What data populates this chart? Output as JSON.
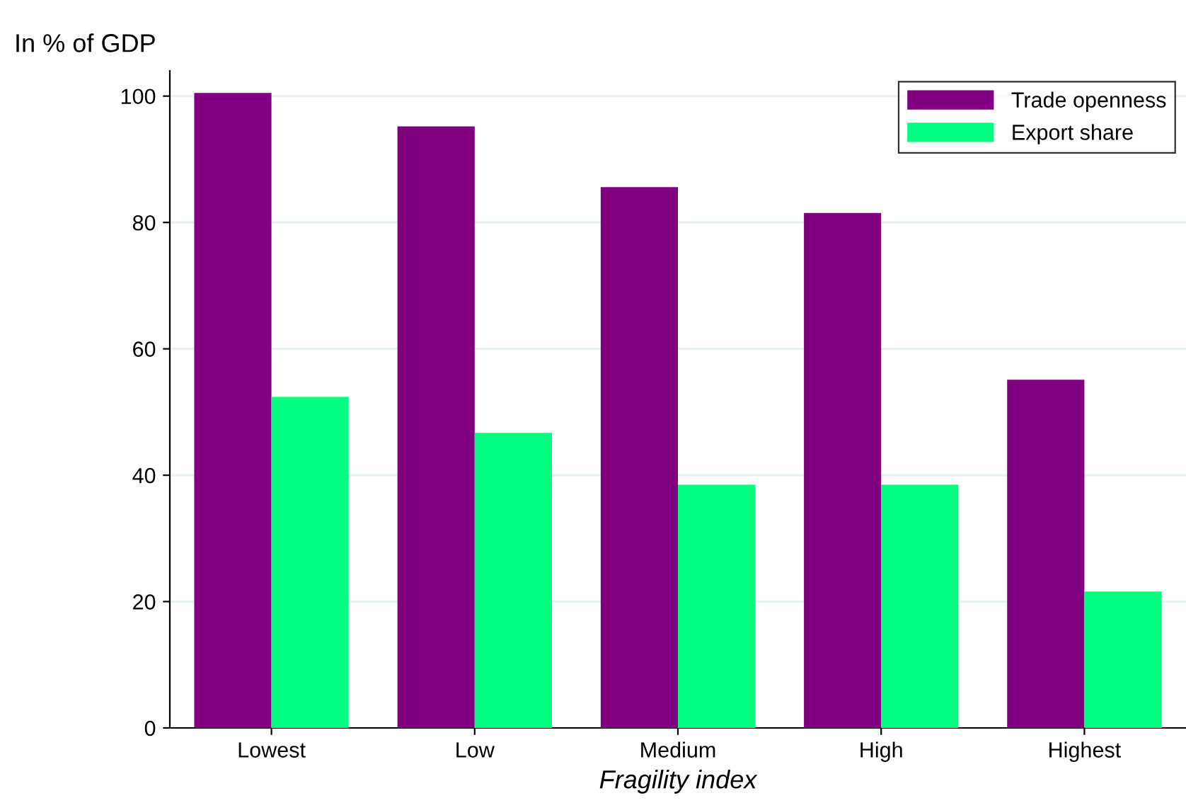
{
  "chart_data": {
    "type": "bar",
    "ylabel": "In % of GDP",
    "xlabel": "Fragility index",
    "categories": [
      "Lowest",
      "Low",
      "Medium",
      "High",
      "Highest"
    ],
    "series": [
      {
        "name": "Trade openness",
        "color": "#800080",
        "values": [
          100.5,
          95.2,
          85.6,
          81.5,
          55.1
        ]
      },
      {
        "name": "Export share",
        "color": "#00ff80",
        "values": [
          52.4,
          46.7,
          38.5,
          38.5,
          21.6
        ]
      }
    ],
    "ylim": [
      0,
      104
    ],
    "yticks": [
      0,
      20,
      40,
      60,
      80,
      100
    ],
    "grid": "y",
    "legend": "top right"
  }
}
